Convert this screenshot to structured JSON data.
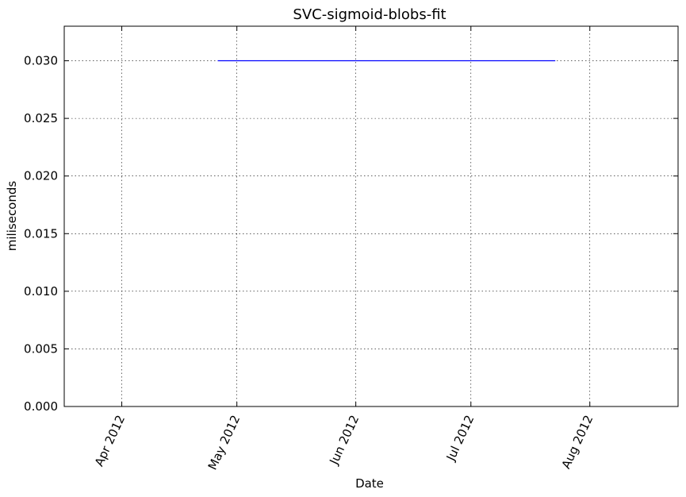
{
  "chart_data": {
    "type": "line",
    "title": "SVC-sigmoid-blobs-fit",
    "xlabel": "Date",
    "ylabel": "miliseconds",
    "x_ticks": [
      {
        "date": "2012-04-01",
        "label": "Apr 2012"
      },
      {
        "date": "2012-05-01",
        "label": "May 2012"
      },
      {
        "date": "2012-06-01",
        "label": "Jun 2012"
      },
      {
        "date": "2012-07-01",
        "label": "Jul 2012"
      },
      {
        "date": "2012-08-01",
        "label": "Aug 2012"
      }
    ],
    "xlim": [
      "2012-03-17",
      "2012-08-24"
    ],
    "ylim": [
      0,
      0.033
    ],
    "y_ticks": [
      "0.000",
      "0.005",
      "0.010",
      "0.015",
      "0.020",
      "0.025",
      "0.030"
    ],
    "grid": true,
    "series": [
      {
        "color": "#0000ff",
        "x": [
          "2012-04-26",
          "2012-07-23"
        ],
        "y": [
          0.03,
          0.03
        ]
      }
    ]
  }
}
